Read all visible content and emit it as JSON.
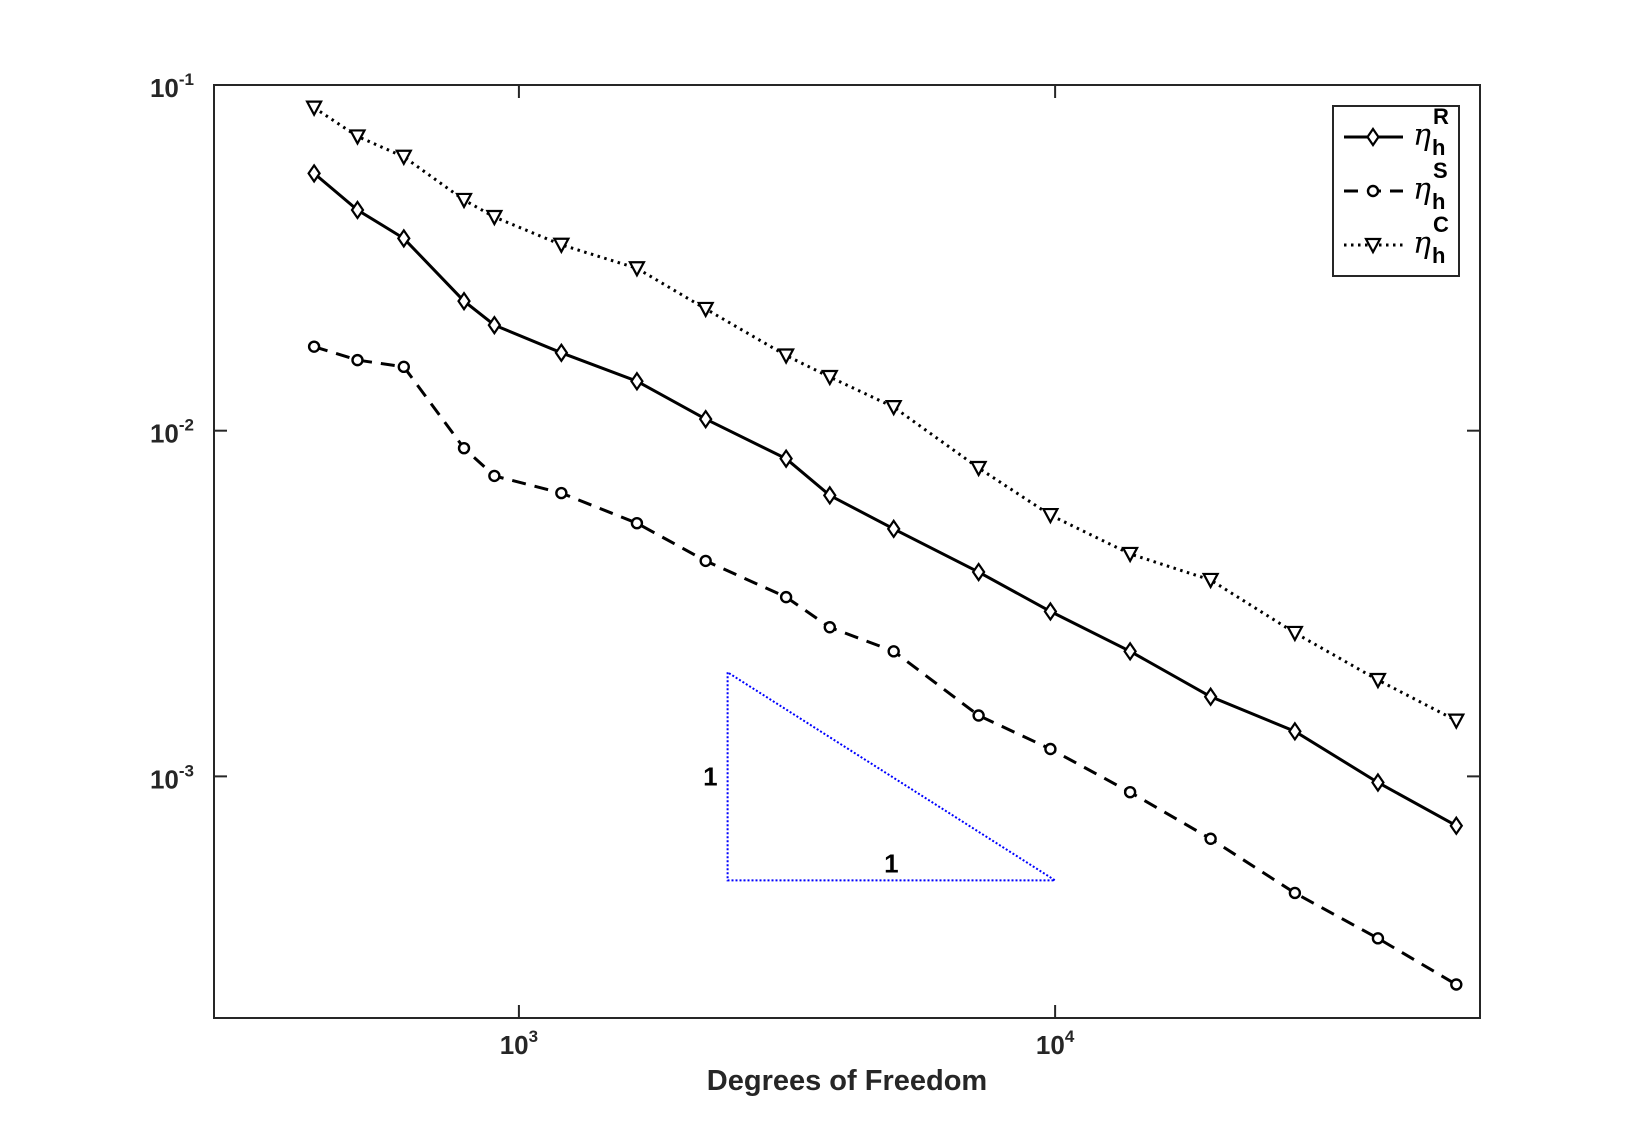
{
  "chart_data": {
    "type": "line",
    "xlabel": "Degrees of Freedom",
    "ylabel": "",
    "xscale": "log",
    "yscale": "log",
    "xlim": [
      270,
      62000
    ],
    "ylim": [
      0.0002,
      0.1
    ],
    "grid": false,
    "legend_position": "top-right",
    "x_ticks": [
      {
        "base": "10",
        "exp": "3",
        "value": 1000
      },
      {
        "base": "10",
        "exp": "4",
        "value": 10000
      }
    ],
    "y_ticks": [
      {
        "base": "10",
        "exp": "-1",
        "value": 0.1
      },
      {
        "base": "10",
        "exp": "-2",
        "value": 0.01
      },
      {
        "base": "10",
        "exp": "-3",
        "value": 0.001
      }
    ],
    "series": [
      {
        "symbol": "η",
        "sub": "h",
        "sup": "R",
        "style": "solid",
        "marker": "diamond",
        "color": "#000000",
        "x": [
          415,
          500,
          610,
          790,
          900,
          1200,
          1660,
          2230,
          3150,
          3800,
          5000,
          7200,
          9800,
          13800,
          19500,
          28000,
          40000,
          56000
        ],
        "y": [
          0.0555,
          0.0435,
          0.036,
          0.0237,
          0.0202,
          0.0168,
          0.0139,
          0.0108,
          0.0083,
          0.0065,
          0.0052,
          0.0039,
          0.003,
          0.0023,
          0.0017,
          0.00135,
          0.00096,
          0.00072
        ]
      },
      {
        "symbol": "η",
        "sub": "h",
        "sup": "S",
        "style": "dashed",
        "marker": "circle",
        "color": "#000000",
        "x": [
          415,
          500,
          610,
          790,
          900,
          1200,
          1660,
          2230,
          3150,
          3800,
          5000,
          7200,
          9800,
          13800,
          19500,
          28000,
          40000,
          56000
        ],
        "y": [
          0.0175,
          0.016,
          0.0153,
          0.0089,
          0.0074,
          0.0066,
          0.0054,
          0.0042,
          0.0033,
          0.0027,
          0.0023,
          0.0015,
          0.0012,
          0.0009,
          0.00066,
          0.00046,
          0.00034,
          0.00025
        ]
      },
      {
        "symbol": "η",
        "sub": "h",
        "sup": "C",
        "style": "dotted",
        "marker": "triangle-down",
        "color": "#000000",
        "x": [
          415,
          500,
          610,
          790,
          900,
          1200,
          1660,
          2230,
          3150,
          3800,
          5000,
          7200,
          9800,
          13800,
          19500,
          28000,
          40000,
          56000
        ],
        "y": [
          0.086,
          0.071,
          0.062,
          0.0465,
          0.0415,
          0.0345,
          0.0295,
          0.0225,
          0.0165,
          0.0143,
          0.0117,
          0.0078,
          0.0057,
          0.0044,
          0.0037,
          0.0026,
          0.0019,
          0.00145
        ]
      }
    ],
    "slope_triangle": {
      "vertices": [
        [
          2450,
          0.002
        ],
        [
          2450,
          0.0005
        ],
        [
          10000,
          0.0005
        ]
      ],
      "color": "#0000ff",
      "vertical_label": "1",
      "horizontal_label": "1"
    }
  }
}
